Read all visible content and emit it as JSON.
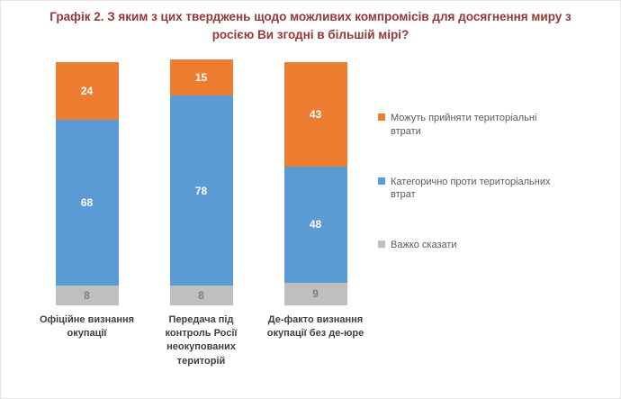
{
  "chart_data": {
    "type": "bar",
    "stacked": true,
    "title": "Графік 2. З яким з цих тверджень щодо можливих компромісів для досягнення миру з росією Ви згодні в більшій мірі?",
    "categories": [
      "Офіційне визнання окупації",
      "Передача під контроль Росії неокупованих територій",
      "Де-факто визнання окупації без де-юре"
    ],
    "series": [
      {
        "name": "Можуть прийняти територіальні втрати",
        "color": "#ED7D31",
        "label_color": "#FFFFFF",
        "values": [
          24,
          15,
          43
        ]
      },
      {
        "name": "Категорично проти територіальних втрат",
        "color": "#5B9BD5",
        "label_color": "#FFFFFF",
        "values": [
          68,
          78,
          48
        ]
      },
      {
        "name": "Важко сказати",
        "color": "#BFBFBF",
        "label_color": "#7F7F7F",
        "values": [
          8,
          8,
          9
        ]
      }
    ],
    "legend_position": "right",
    "grid": false,
    "axes_visible": false,
    "ylim": [
      0,
      101
    ],
    "title_color": "#953735"
  }
}
